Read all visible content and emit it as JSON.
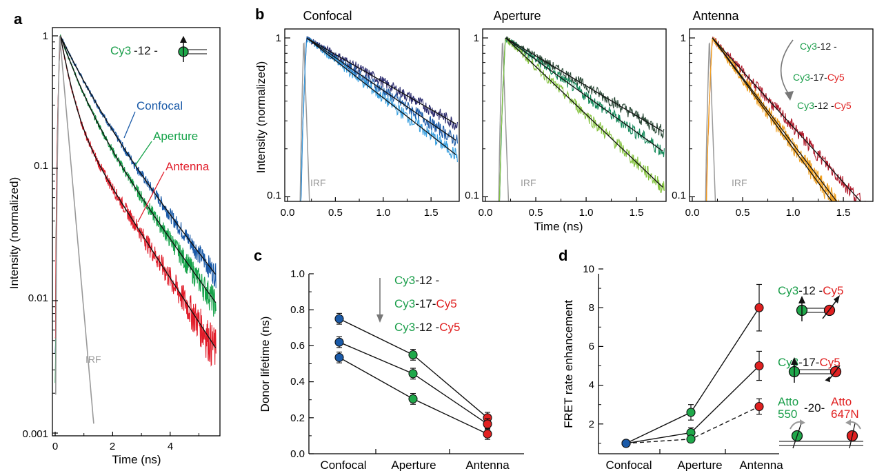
{
  "colors": {
    "cy3": "#1a9e4a",
    "cy5": "#e02020",
    "black": "#111111",
    "irf": "#999999",
    "confocal": "#1a5aa8",
    "aperture": "#16a34a",
    "antenna": "#e11d2a",
    "conf_dark": "#2a2a6e",
    "conf_mid": "#1a5aa8",
    "conf_light": "#3aa0e0",
    "ap_dark": "#2c4a38",
    "ap_mid": "#148a5a",
    "ap_light": "#86c440",
    "an_dark": "#b01a2a",
    "an_mid": "#e03030",
    "an_light": "#f0a020",
    "marker_blue": "#1a5aa8",
    "marker_green": "#1fa84a",
    "marker_red": "#e02020"
  },
  "panels": {
    "a": {
      "label": "a",
      "xlabel": "Time (ns)",
      "ylabel": "Intensity (normalized)",
      "xticks": [
        "0",
        "2",
        "4"
      ],
      "yticks": [
        "1",
        "0.1",
        "0.01",
        "0.001"
      ],
      "legend_cy3": "Cy3",
      "legend_mid": "-12 -",
      "labels": {
        "confocal": "Confocal",
        "aperture": "Aperture",
        "antenna": "Antenna",
        "irf": "IRF"
      }
    },
    "b": {
      "label": "b",
      "titles": [
        "Confocal",
        "Aperture",
        "Antenna"
      ],
      "xlabel": "Time (ns)",
      "ylabel": "Intensity (normalized)",
      "xticks": [
        "0.0",
        "0.5",
        "1.0",
        "1.5"
      ],
      "yticks": [
        "1",
        "0.1"
      ],
      "irf": "IRF",
      "legend": [
        {
          "cy3": "Cy3",
          "mid": "-12 -",
          "cy5": ""
        },
        {
          "cy3": "Cy3",
          "mid": "-17-",
          "cy5": "Cy5"
        },
        {
          "cy3": "Cy3",
          "mid": "-12 -",
          "cy5": "Cy5"
        }
      ]
    },
    "c": {
      "label": "c",
      "ylabel": "Donor lifetime (ns)",
      "yticks": [
        "0.0",
        "0.2",
        "0.4",
        "0.6",
        "0.8",
        "1.0"
      ],
      "categories": [
        "Confocal",
        "Aperture",
        "Antenna"
      ],
      "legend": [
        {
          "cy3": "Cy3",
          "mid": "-12 -",
          "cy5": ""
        },
        {
          "cy3": "Cy3",
          "mid": "-17-",
          "cy5": "Cy5"
        },
        {
          "cy3": "Cy3",
          "mid": "-12 -",
          "cy5": "Cy5"
        }
      ]
    },
    "d": {
      "label": "d",
      "ylabel": "FRET rate enhancement",
      "yticks": [
        "2",
        "4",
        "6",
        "8",
        "10"
      ],
      "categories": [
        "Confocal",
        "Aperture",
        "Antenna"
      ],
      "legend": [
        {
          "cy3": "Cy3",
          "mid": "-12 -",
          "cy5": "Cy5"
        },
        {
          "cy3": "Cy3",
          "mid": "-17-",
          "cy5": "Cy5"
        },
        {
          "cy3a": "Atto",
          "cy3b": "550",
          "mid": "-20-",
          "cy5a": "Atto",
          "cy5b": "647N"
        }
      ]
    }
  },
  "chart_data": [
    {
      "type": "line",
      "panel": "a",
      "xlabel": "Time (ns)",
      "ylabel": "Intensity (normalized)",
      "xlim": [
        0,
        5.7
      ],
      "ylim": [
        0.001,
        1.2
      ],
      "yscale": "log",
      "series": [
        {
          "name": "Confocal",
          "tau1": 0.75,
          "tau2": 1.6,
          "a1": 0.55
        },
        {
          "name": "Aperture",
          "tau1": 0.55,
          "tau2": 1.45,
          "a1": 0.6
        },
        {
          "name": "Antenna",
          "tau1": 0.3,
          "tau2": 1.3,
          "a1": 0.72
        },
        {
          "name": "IRF",
          "tau1": 0.11,
          "tau2": 0.11,
          "a1": 1.0
        }
      ]
    },
    {
      "type": "line",
      "panel": "b",
      "xlabel": "Time (ns)",
      "ylabel": "Intensity (normalized)",
      "xlim": [
        -0.05,
        1.75
      ],
      "ylim": [
        0.09,
        1.15
      ],
      "yscale": "log",
      "subplots": [
        {
          "title": "Confocal",
          "tau": [
            1.25,
            1.05,
            0.92
          ]
        },
        {
          "title": "Aperture",
          "tau": [
            1.15,
            0.95,
            0.72
          ]
        },
        {
          "title": "Antenna",
          "tau": [
            0.62,
            0.5,
            0.52
          ]
        }
      ]
    },
    {
      "type": "line",
      "panel": "c",
      "ylabel": "Donor lifetime (ns)",
      "categories": [
        "Confocal",
        "Aperture",
        "Antenna"
      ],
      "ylim": [
        0,
        1.0
      ],
      "series": [
        {
          "name": "Cy3-12-",
          "values": [
            0.75,
            0.55,
            0.2
          ],
          "errors": [
            0.03,
            0.03,
            0.03
          ]
        },
        {
          "name": "Cy3-17-Cy5",
          "values": [
            0.62,
            0.445,
            0.165
          ],
          "errors": [
            0.03,
            0.03,
            0.03
          ]
        },
        {
          "name": "Cy3-12-Cy5",
          "values": [
            0.535,
            0.305,
            0.11
          ],
          "errors": [
            0.03,
            0.03,
            0.03
          ]
        }
      ]
    },
    {
      "type": "line",
      "panel": "d",
      "ylabel": "FRET rate enhancement",
      "categories": [
        "Confocal",
        "Aperture",
        "Antenna"
      ],
      "ylim": [
        0.8,
        10
      ],
      "series": [
        {
          "name": "Cy3-12-Cy5",
          "values": [
            1,
            2.6,
            8.0
          ],
          "errors": [
            0,
            0.4,
            1.2
          ],
          "dashed": false
        },
        {
          "name": "Cy3-17-Cy5",
          "values": [
            1,
            1.55,
            5.0
          ],
          "errors": [
            0,
            0.25,
            0.75
          ],
          "dashed": false
        },
        {
          "name": "Atto550-20-Atto647N",
          "values": [
            1,
            1.22,
            2.9
          ],
          "errors": [
            0,
            0.1,
            0.4
          ],
          "dashed": true
        }
      ]
    }
  ]
}
